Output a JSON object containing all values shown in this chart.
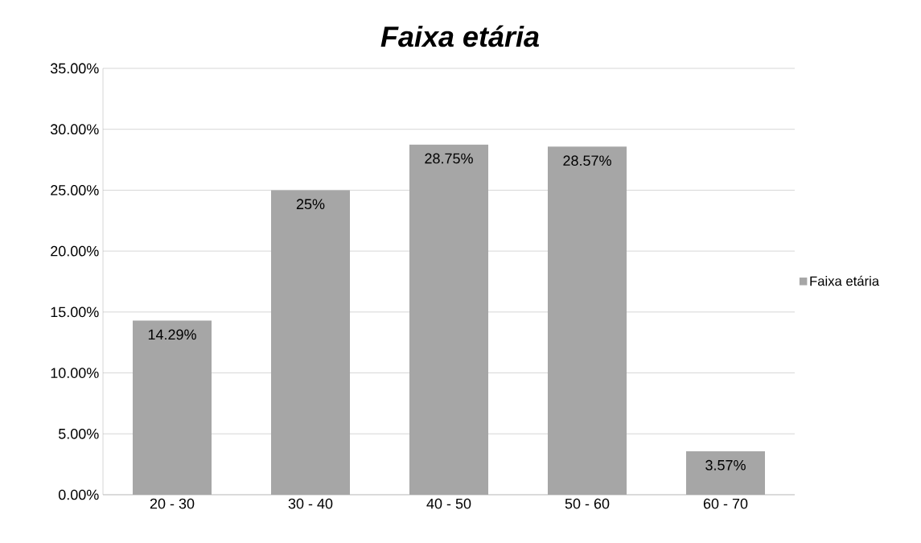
{
  "chart_data": {
    "type": "bar",
    "title": "Faixa etária",
    "categories": [
      "20 - 30",
      "30 - 40",
      "40 - 50",
      "50 - 60",
      "60 - 70"
    ],
    "series": [
      {
        "name": "Faixa etária",
        "color": "#a6a6a6",
        "values": [
          14.29,
          25,
          28.75,
          28.57,
          3.57
        ],
        "value_labels": [
          "14.29%",
          "25%",
          "28.75%",
          "28.57%",
          "3.57%"
        ]
      }
    ],
    "ylim": [
      0,
      35
    ],
    "yticks": [
      {
        "value": 0,
        "label": "0.00%"
      },
      {
        "value": 5,
        "label": "5.00%"
      },
      {
        "value": 10,
        "label": "10.00%"
      },
      {
        "value": 15,
        "label": "15.00%"
      },
      {
        "value": 20,
        "label": "20.00%"
      },
      {
        "value": 25,
        "label": "25.00%"
      },
      {
        "value": 30,
        "label": "30.00%"
      },
      {
        "value": 35,
        "label": "35.00%"
      }
    ],
    "grid": "y",
    "legend": "right"
  }
}
